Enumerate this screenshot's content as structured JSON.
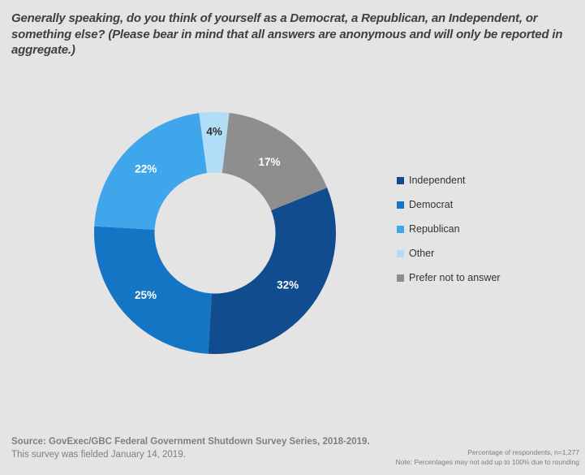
{
  "title": "Generally speaking, do you think of yourself as a Democrat, a Republican, an Independent, or something else? (Please bear in mind that all answers are anonymous and will only be reported in aggregate.)",
  "colors": {
    "background": "#E4E4E4",
    "title_text": "#3F3F3F",
    "legend_text": "#333333",
    "footer_text": "#7F7F7F"
  },
  "chart_data": {
    "type": "pie",
    "subtype": "donut",
    "start_angle": 68,
    "hole_ratio": 0.5,
    "legend_position": "right",
    "categories": [
      "Independent",
      "Democrat",
      "Republican",
      "Other",
      "Prefer not to answer"
    ],
    "values": [
      32,
      25,
      22,
      4,
      17
    ],
    "slices": [
      {
        "label": "Independent",
        "value": 32,
        "display": "32%",
        "color": "#114C8E",
        "label_color": "#FFFFFF",
        "label_radius": 0.74
      },
      {
        "label": "Democrat",
        "value": 25,
        "display": "25%",
        "color": "#1575C5",
        "label_color": "#FFFFFF",
        "label_radius": 0.77
      },
      {
        "label": "Republican",
        "value": 22,
        "display": "22%",
        "color": "#3FA6EC",
        "label_color": "#FFFFFF",
        "label_radius": 0.78
      },
      {
        "label": "Other",
        "value": 4,
        "display": "4%",
        "color": "#B2DDF6",
        "label_color": "#2E2E2E",
        "label_radius": 0.84
      },
      {
        "label": "Prefer not to answer",
        "value": 17,
        "display": "17%",
        "color": "#8E8E8E",
        "label_color": "#FFFFFF",
        "label_radius": 0.74
      }
    ]
  },
  "footer": {
    "source_line1": "Source: GovExec/GBC Federal Government Shutdown Survey Series, 2018-2019.",
    "source_line2": "This survey was fielded January 14, 2019.",
    "note_line1": "Percentage of respondents, n=1,277",
    "note_line2": "Note: Percentages may not add up to 100% due to rounding"
  }
}
